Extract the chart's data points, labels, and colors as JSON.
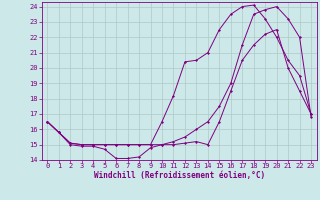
{
  "xlabel": "Windchill (Refroidissement éolien,°C)",
  "bg_color": "#cce8e8",
  "line_color": "#800080",
  "grid_color": "#b0c8c8",
  "xlim": [
    -0.5,
    23.5
  ],
  "ylim": [
    14,
    24.3
  ],
  "xticks": [
    0,
    1,
    2,
    3,
    4,
    5,
    6,
    7,
    8,
    9,
    10,
    11,
    12,
    13,
    14,
    15,
    16,
    17,
    18,
    19,
    20,
    21,
    22,
    23
  ],
  "yticks": [
    14,
    15,
    16,
    17,
    18,
    19,
    20,
    21,
    22,
    23,
    24
  ],
  "curve1_x": [
    0,
    1,
    2,
    3,
    4,
    5,
    6,
    7,
    8,
    9,
    10,
    11,
    12,
    13,
    14,
    15,
    16,
    17,
    18,
    19,
    20,
    21,
    22,
    23
  ],
  "curve1_y": [
    16.5,
    15.8,
    15.0,
    14.9,
    14.9,
    14.7,
    14.1,
    14.1,
    14.2,
    14.8,
    15.0,
    15.0,
    15.1,
    15.2,
    15.0,
    16.5,
    18.5,
    20.5,
    21.5,
    22.2,
    22.5,
    20.0,
    18.5,
    17.0
  ],
  "curve2_x": [
    0,
    1,
    2,
    3,
    4,
    5,
    6,
    7,
    8,
    9,
    10,
    11,
    12,
    13,
    14,
    15,
    16,
    17,
    18,
    19,
    20,
    21,
    22,
    23
  ],
  "curve2_y": [
    16.5,
    15.8,
    15.1,
    15.0,
    15.0,
    15.0,
    15.0,
    15.0,
    15.0,
    15.0,
    15.0,
    15.2,
    15.5,
    16.0,
    16.5,
    17.5,
    19.0,
    21.5,
    23.5,
    23.8,
    24.0,
    23.2,
    22.0,
    16.8
  ],
  "curve3_x": [
    0,
    1,
    2,
    3,
    4,
    5,
    6,
    7,
    8,
    9,
    10,
    11,
    12,
    13,
    14,
    15,
    16,
    17,
    18,
    19,
    20,
    21,
    22,
    23
  ],
  "curve3_y": [
    16.5,
    15.8,
    15.1,
    15.0,
    15.0,
    15.0,
    15.0,
    15.0,
    15.0,
    15.0,
    16.5,
    18.2,
    20.4,
    20.5,
    21.0,
    22.5,
    23.5,
    24.0,
    24.1,
    23.2,
    22.0,
    20.5,
    19.5,
    17.0
  ],
  "xlabel_fontsize": 5.5,
  "tick_fontsize": 5.0
}
